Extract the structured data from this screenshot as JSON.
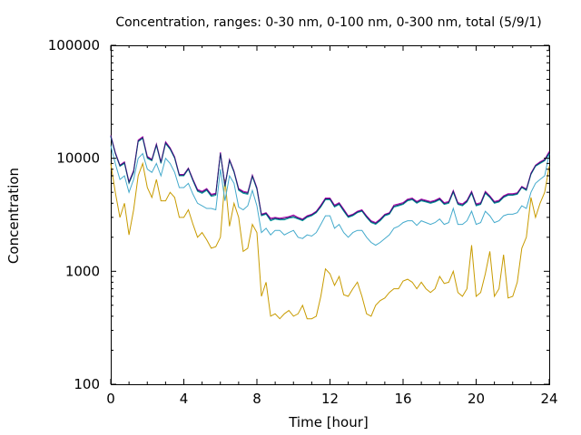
{
  "chart_data": {
    "type": "line",
    "title": "Concentration, ranges: 0-30 nm, 0-100 nm, 0-300 nm, total (5/9/1)",
    "xlabel": "Time [hour]",
    "ylabel": "Concentration",
    "xlim": [
      0,
      24
    ],
    "ylim": [
      100,
      100000
    ],
    "yscale": "log",
    "grid": false,
    "legend": "none",
    "x_ticks": [
      0,
      4,
      8,
      12,
      16,
      20,
      24
    ],
    "x_tick_labels": [
      "0",
      "4",
      "8",
      "12",
      "16",
      "20",
      "24"
    ],
    "y_ticks": [
      100,
      1000,
      10000,
      100000
    ],
    "y_tick_labels": [
      "100",
      "1000",
      "10000",
      "100000"
    ],
    "x": [
      0,
      0.25,
      0.5,
      0.75,
      1,
      1.25,
      1.5,
      1.75,
      2,
      2.25,
      2.5,
      2.75,
      3,
      3.25,
      3.5,
      3.75,
      4,
      4.25,
      4.5,
      4.75,
      5,
      5.25,
      5.5,
      5.75,
      6,
      6.25,
      6.5,
      6.75,
      7,
      7.25,
      7.5,
      7.75,
      8,
      8.25,
      8.5,
      8.75,
      9,
      9.25,
      9.5,
      9.75,
      10,
      10.25,
      10.5,
      10.75,
      11,
      11.25,
      11.5,
      11.75,
      12,
      12.25,
      12.5,
      12.75,
      13,
      13.25,
      13.5,
      13.75,
      14,
      14.25,
      14.5,
      14.75,
      15,
      15.25,
      15.5,
      15.75,
      16,
      16.25,
      16.5,
      16.75,
      17,
      17.25,
      17.5,
      17.75,
      18,
      18.25,
      18.5,
      18.75,
      19,
      19.25,
      19.5,
      19.75,
      20,
      20.25,
      20.5,
      20.75,
      21,
      21.25,
      21.5,
      21.75,
      22,
      22.25,
      22.5,
      22.75,
      23,
      23.25,
      23.5,
      23.75,
      24
    ],
    "series": [
      {
        "color": "#c89b00",
        "values": [
          9000,
          5000,
          3000,
          4000,
          2100,
          3500,
          7000,
          9000,
          5500,
          4500,
          6500,
          4200,
          4200,
          5000,
          4500,
          3000,
          3000,
          3500,
          2600,
          2000,
          2200,
          1900,
          1600,
          1650,
          2000,
          6500,
          2500,
          4000,
          3000,
          1500,
          1600,
          2600,
          2200,
          600,
          800,
          400,
          420,
          380,
          420,
          450,
          400,
          420,
          500,
          380,
          380,
          400,
          600,
          1050,
          950,
          750,
          900,
          620,
          600,
          700,
          800,
          600,
          420,
          400,
          500,
          550,
          580,
          650,
          700,
          700,
          820,
          850,
          800,
          700,
          800,
          700,
          650,
          700,
          900,
          780,
          800,
          1000,
          650,
          600,
          700,
          1700,
          600,
          650,
          950,
          1500,
          600,
          700,
          1400,
          580,
          600,
          800,
          1600,
          2000,
          4500,
          3000,
          4000,
          5000,
          8500
        ]
      },
      {
        "color": "#44aacc",
        "values": [
          13000,
          9000,
          6500,
          7000,
          5000,
          6500,
          10000,
          11000,
          8000,
          7500,
          9000,
          7000,
          10000,
          9000,
          7500,
          5500,
          5500,
          6000,
          4800,
          4000,
          3800,
          3600,
          3600,
          3500,
          8000,
          4200,
          7000,
          6000,
          3700,
          3500,
          3800,
          5200,
          3800,
          2200,
          2400,
          2100,
          2300,
          2300,
          2100,
          2200,
          2300,
          2000,
          1950,
          2100,
          2050,
          2200,
          2600,
          3100,
          3100,
          2400,
          2600,
          2200,
          2000,
          2200,
          2300,
          2300,
          2000,
          1800,
          1700,
          1800,
          1950,
          2100,
          2400,
          2500,
          2700,
          2800,
          2800,
          2550,
          2800,
          2700,
          2600,
          2700,
          2900,
          2600,
          2700,
          3600,
          2600,
          2600,
          2800,
          3400,
          2600,
          2700,
          3400,
          3100,
          2700,
          2800,
          3100,
          3200,
          3200,
          3300,
          3800,
          3600,
          5000,
          6000,
          6500,
          7000,
          11000
        ]
      },
      {
        "color": "#009c9c",
        "values": [
          15500,
          11000,
          8500,
          9000,
          6000,
          7500,
          14000,
          15000,
          10000,
          9500,
          13000,
          9000,
          13500,
          12000,
          10000,
          7000,
          7000,
          8000,
          6300,
          5100,
          4900,
          5200,
          4600,
          4700,
          11000,
          5600,
          9500,
          7500,
          5200,
          4900,
          4800,
          6900,
          5300,
          3100,
          3200,
          2800,
          2900,
          2850,
          2850,
          2950,
          3000,
          2900,
          2800,
          3000,
          3100,
          3300,
          3700,
          4300,
          4300,
          3700,
          3900,
          3400,
          3000,
          3100,
          3300,
          3400,
          3000,
          2700,
          2600,
          2800,
          3100,
          3200,
          3700,
          3800,
          3900,
          4200,
          4300,
          4000,
          4200,
          4100,
          4000,
          4100,
          4300,
          3900,
          4000,
          5000,
          3900,
          3800,
          4100,
          4900,
          3800,
          3900,
          4900,
          4500,
          4000,
          4100,
          4500,
          4700,
          4700,
          4800,
          5500,
          5200,
          7200,
          8500,
          9000,
          9500,
          11000
        ]
      },
      {
        "color": "#aa00aa",
        "values": [
          16000,
          11300,
          8700,
          9300,
          6200,
          7800,
          14500,
          15500,
          10400,
          9800,
          13400,
          9300,
          14000,
          12400,
          10300,
          7200,
          7200,
          8200,
          6500,
          5300,
          5100,
          5400,
          4800,
          4900,
          11300,
          5800,
          9800,
          7700,
          5400,
          5100,
          5000,
          7100,
          5500,
          3200,
          3300,
          2950,
          3000,
          2950,
          3000,
          3050,
          3150,
          3000,
          2900,
          3100,
          3200,
          3400,
          3850,
          4450,
          4450,
          3850,
          4050,
          3550,
          3100,
          3200,
          3400,
          3500,
          3100,
          2800,
          2700,
          2900,
          3200,
          3300,
          3850,
          3950,
          4050,
          4350,
          4450,
          4150,
          4350,
          4250,
          4150,
          4250,
          4450,
          4050,
          4150,
          5200,
          4050,
          3950,
          4250,
          5100,
          3950,
          4050,
          5100,
          4650,
          4150,
          4250,
          4650,
          4850,
          4850,
          4950,
          5650,
          5350,
          7400,
          8700,
          9300,
          9800,
          11500
        ]
      },
      {
        "color": "#1a2a6e",
        "values": [
          15800,
          11100,
          8600,
          9150,
          6100,
          7650,
          14200,
          15200,
          10200,
          9650,
          13200,
          9150,
          13700,
          12200,
          10150,
          7100,
          7100,
          8100,
          6400,
          5200,
          5000,
          5300,
          4700,
          4800,
          11100,
          5700,
          9650,
          7600,
          5300,
          5000,
          4900,
          7000,
          5400,
          3150,
          3250,
          2870,
          2950,
          2900,
          2920,
          3000,
          3070,
          2950,
          2850,
          3050,
          3150,
          3350,
          3770,
          4370,
          4370,
          3770,
          3970,
          3470,
          3050,
          3150,
          3350,
          3450,
          3050,
          2750,
          2650,
          2850,
          3150,
          3250,
          3770,
          3870,
          3970,
          4270,
          4370,
          4070,
          4270,
          4170,
          4070,
          4170,
          4370,
          3970,
          4070,
          5100,
          3970,
          3870,
          4170,
          5000,
          3870,
          3970,
          5000,
          4570,
          4070,
          4170,
          4570,
          4770,
          4770,
          4870,
          5570,
          5270,
          7300,
          8600,
          9150,
          9650,
          11200
        ]
      }
    ]
  }
}
